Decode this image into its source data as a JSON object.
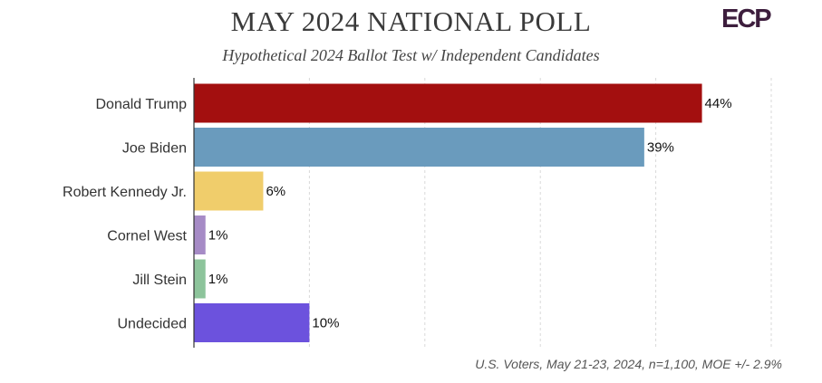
{
  "title": "MAY 2024 NATIONAL POLL",
  "subtitle": "Hypothetical 2024 Ballot Test w/ Independent Candidates",
  "logo_text": "ECP",
  "footnote": "U.S. Voters, May 21-23, 2024, n=1,100, MOE +/- 2.9%",
  "chart_data": {
    "type": "bar",
    "orientation": "horizontal",
    "categories": [
      "Donald Trump",
      "Joe Biden",
      "Robert Kennedy Jr.",
      "Cornel West",
      "Jill Stein",
      "Undecided"
    ],
    "values": [
      44,
      39,
      6,
      1,
      1,
      10
    ],
    "data_labels": [
      "44%",
      "39%",
      "6%",
      "1%",
      "1%",
      "10%"
    ],
    "colors": [
      "#a30f0f",
      "#6a9bbd",
      "#f0cd6b",
      "#a68bc6",
      "#8dc49b",
      "#6c52dd"
    ],
    "xlim": [
      0,
      50
    ],
    "grid": "vertical dashed",
    "legend": "none"
  }
}
